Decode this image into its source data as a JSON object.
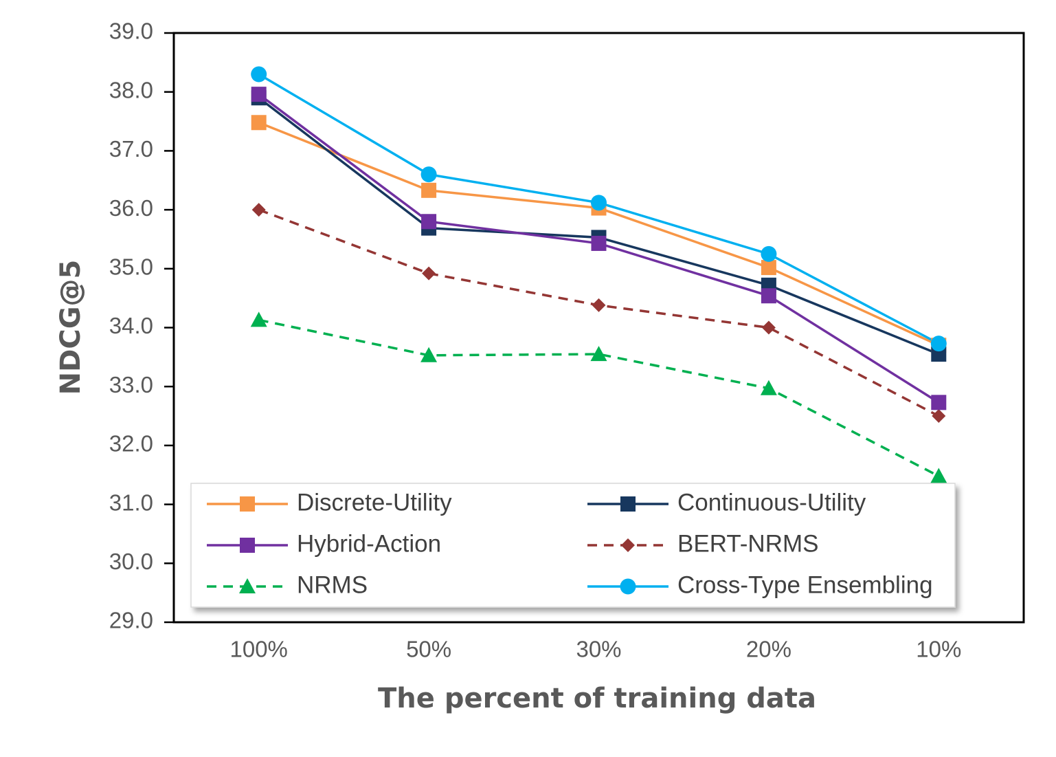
{
  "chart_data": {
    "type": "line",
    "title": "",
    "xlabel": "The percent of training data",
    "ylabel": "NDCG@5",
    "categories": [
      "100%",
      "50%",
      "30%",
      "20%",
      "10%"
    ],
    "ylim": [
      29.0,
      39.0
    ],
    "yticks": [
      "29.0",
      "30.0",
      "31.0",
      "32.0",
      "33.0",
      "34.0",
      "35.0",
      "36.0",
      "37.0",
      "38.0",
      "39.0"
    ],
    "grid": false,
    "legend_position": "bottom",
    "series": [
      {
        "name": "Discrete-Utility",
        "values": [
          37.48,
          36.33,
          36.03,
          35.02,
          33.7
        ],
        "color": "#F79646",
        "marker": "square",
        "dash": "solid"
      },
      {
        "name": "Continuous-Utility",
        "values": [
          37.9,
          35.69,
          35.53,
          34.72,
          33.55
        ],
        "color": "#17375E",
        "marker": "square",
        "dash": "solid"
      },
      {
        "name": "Hybrid-Action",
        "values": [
          37.96,
          35.8,
          35.43,
          34.54,
          32.73
        ],
        "color": "#7030A0",
        "marker": "square",
        "dash": "solid"
      },
      {
        "name": "BERT-NRMS",
        "values": [
          36.0,
          34.92,
          34.38,
          34.0,
          32.5
        ],
        "color": "#943634",
        "marker": "diamond",
        "dash": "dashed"
      },
      {
        "name": "NRMS",
        "values": [
          34.13,
          33.53,
          33.55,
          32.97,
          31.48
        ],
        "color": "#00B050",
        "marker": "triangle",
        "dash": "dashed"
      },
      {
        "name": "Cross-Type Ensembling",
        "values": [
          38.3,
          36.6,
          36.12,
          35.25,
          33.73
        ],
        "color": "#00B0F0",
        "marker": "circle",
        "dash": "solid"
      }
    ]
  }
}
